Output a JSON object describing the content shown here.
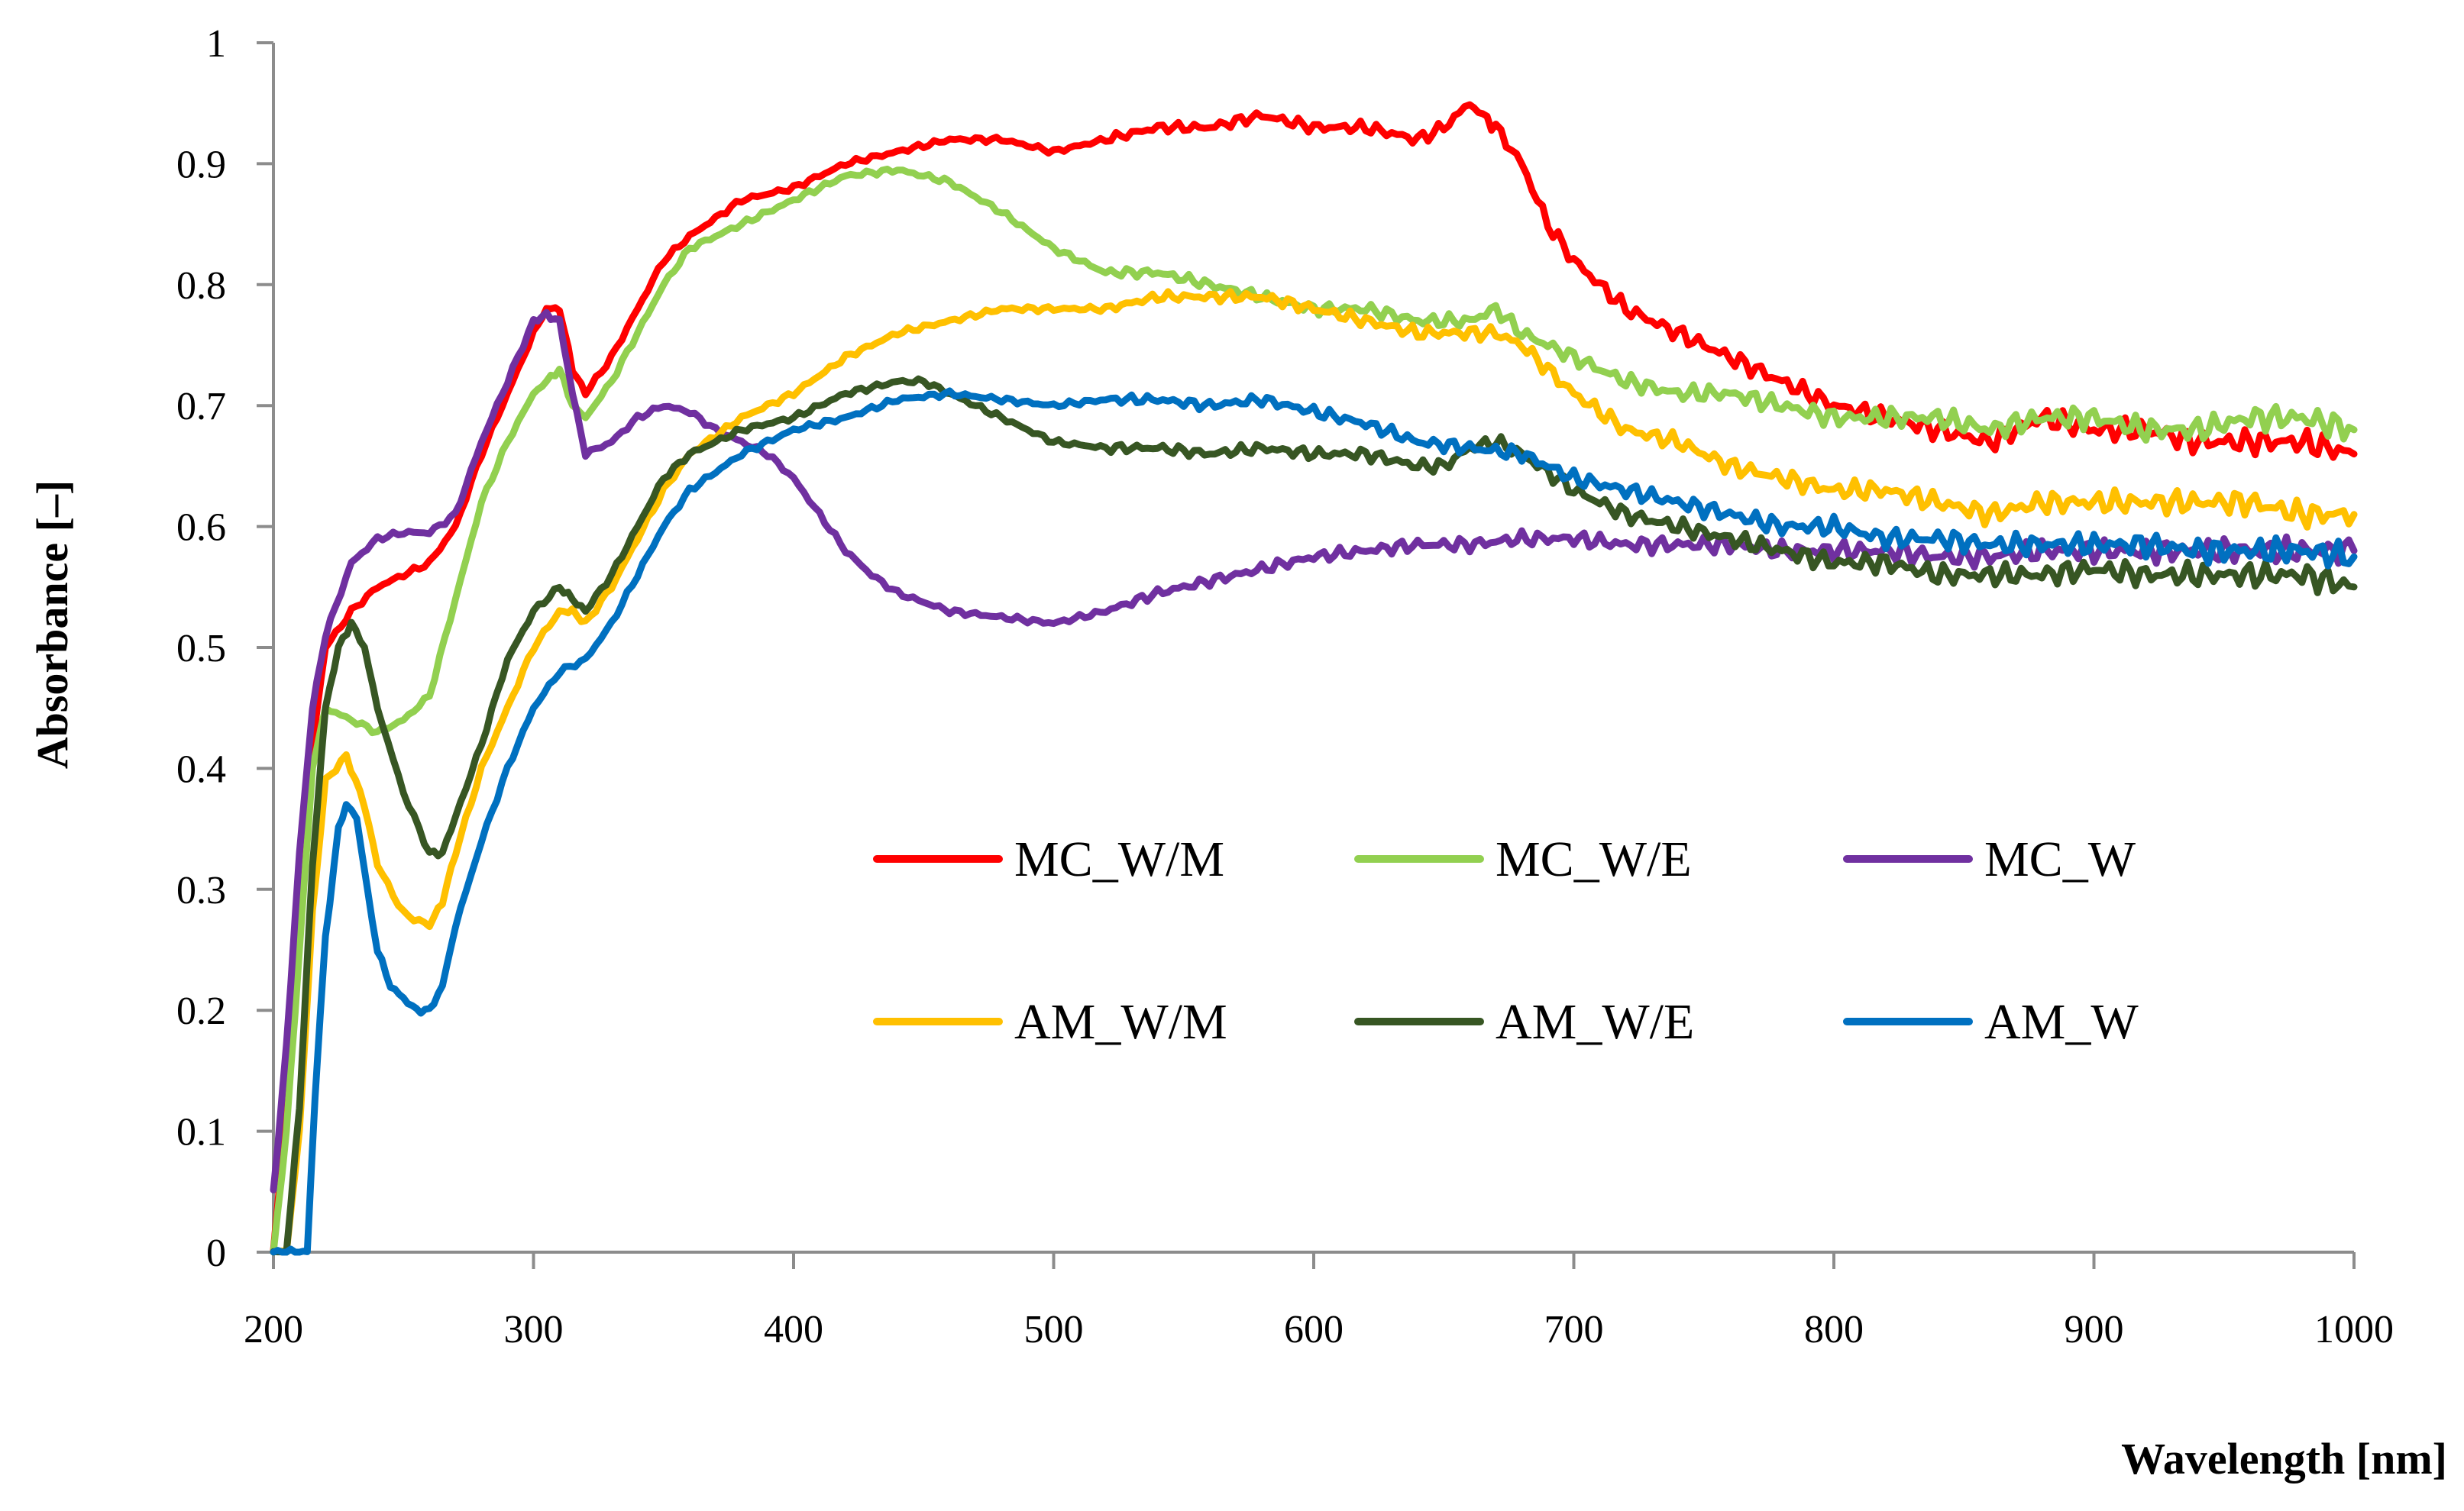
{
  "chart_data": {
    "type": "line",
    "title": "",
    "xlabel": "Wavelength [nm]",
    "ylabel": "Absorbance [–]",
    "xlim": [
      200,
      1000
    ],
    "ylim": [
      0,
      1
    ],
    "x_ticks": [
      200,
      300,
      400,
      500,
      600,
      700,
      800,
      900,
      1000
    ],
    "y_ticks": [
      0,
      0.1,
      0.2,
      0.3,
      0.4,
      0.5,
      0.6,
      0.7,
      0.8,
      0.9,
      1
    ],
    "y_tick_labels": [
      "0",
      "0.1",
      "0.2",
      "0.3",
      "0.4",
      "0.5",
      "0.6",
      "0.7",
      "0.8",
      "0.9",
      "1"
    ],
    "grid": false,
    "legend_position": "center-right, inside plot",
    "series": [
      {
        "name": "MC_W/M",
        "color": "#ff0000",
        "x": [
          200,
          205,
          210,
          215,
          220,
          230,
          240,
          250,
          260,
          270,
          280,
          290,
          300,
          305,
          310,
          315,
          320,
          330,
          340,
          350,
          360,
          380,
          400,
          420,
          440,
          460,
          480,
          500,
          520,
          540,
          560,
          580,
          600,
          620,
          640,
          650,
          660,
          665,
          670,
          680,
          690,
          700,
          720,
          740,
          760,
          780,
          800,
          820,
          840,
          860,
          880,
          900,
          920,
          940,
          960,
          980,
          1000
        ],
        "y": [
          0.0,
          0.12,
          0.28,
          0.42,
          0.5,
          0.53,
          0.55,
          0.56,
          0.57,
          0.6,
          0.66,
          0.71,
          0.76,
          0.78,
          0.78,
          0.73,
          0.71,
          0.74,
          0.78,
          0.82,
          0.84,
          0.87,
          0.88,
          0.9,
          0.91,
          0.92,
          0.92,
          0.91,
          0.92,
          0.93,
          0.93,
          0.94,
          0.93,
          0.93,
          0.92,
          0.93,
          0.95,
          0.94,
          0.93,
          0.9,
          0.85,
          0.82,
          0.78,
          0.76,
          0.74,
          0.72,
          0.7,
          0.69,
          0.68,
          0.67,
          0.69,
          0.68,
          0.68,
          0.67,
          0.67,
          0.67,
          0.66
        ]
      },
      {
        "name": "MC_W/E",
        "color": "#92d050",
        "x": [
          200,
          205,
          210,
          215,
          220,
          230,
          240,
          250,
          260,
          270,
          280,
          290,
          300,
          305,
          310,
          315,
          320,
          330,
          340,
          350,
          360,
          380,
          400,
          420,
          440,
          460,
          480,
          500,
          520,
          540,
          560,
          580,
          600,
          620,
          640,
          660,
          670,
          680,
          700,
          720,
          740,
          760,
          780,
          800,
          820,
          840,
          860,
          880,
          900,
          920,
          940,
          960,
          980,
          1000
        ],
        "y": [
          0.0,
          0.1,
          0.25,
          0.4,
          0.45,
          0.44,
          0.43,
          0.44,
          0.46,
          0.54,
          0.62,
          0.67,
          0.71,
          0.72,
          0.73,
          0.7,
          0.69,
          0.72,
          0.76,
          0.8,
          0.83,
          0.85,
          0.87,
          0.89,
          0.895,
          0.885,
          0.86,
          0.83,
          0.81,
          0.81,
          0.8,
          0.79,
          0.78,
          0.78,
          0.77,
          0.77,
          0.78,
          0.76,
          0.74,
          0.72,
          0.71,
          0.71,
          0.7,
          0.69,
          0.69,
          0.69,
          0.68,
          0.69,
          0.69,
          0.68,
          0.68,
          0.69,
          0.69,
          0.68
        ]
      },
      {
        "name": "MC_W",
        "color": "#7030a0",
        "x": [
          200,
          205,
          210,
          215,
          220,
          230,
          240,
          250,
          260,
          270,
          280,
          290,
          300,
          305,
          310,
          315,
          320,
          330,
          340,
          350,
          360,
          370,
          380,
          390,
          400,
          410,
          420,
          430,
          440,
          460,
          480,
          500,
          520,
          540,
          560,
          580,
          600,
          620,
          640,
          660,
          680,
          700,
          720,
          740,
          760,
          780,
          800,
          820,
          840,
          860,
          880,
          900,
          920,
          940,
          960,
          980,
          1000
        ],
        "y": [
          0.05,
          0.17,
          0.33,
          0.45,
          0.51,
          0.57,
          0.59,
          0.595,
          0.595,
          0.61,
          0.67,
          0.72,
          0.77,
          0.775,
          0.77,
          0.71,
          0.66,
          0.67,
          0.69,
          0.7,
          0.695,
          0.68,
          0.67,
          0.66,
          0.64,
          0.61,
          0.58,
          0.56,
          0.545,
          0.53,
          0.525,
          0.52,
          0.53,
          0.545,
          0.555,
          0.565,
          0.575,
          0.58,
          0.585,
          0.585,
          0.59,
          0.59,
          0.585,
          0.585,
          0.585,
          0.58,
          0.58,
          0.58,
          0.575,
          0.575,
          0.58,
          0.58,
          0.58,
          0.58,
          0.58,
          0.58,
          0.58
        ]
      },
      {
        "name": "AM_W/M",
        "color": "#ffc000",
        "x": [
          200,
          205,
          210,
          215,
          220,
          228,
          235,
          240,
          250,
          260,
          265,
          270,
          280,
          290,
          300,
          310,
          315,
          320,
          330,
          340,
          350,
          360,
          380,
          400,
          420,
          440,
          460,
          480,
          500,
          520,
          540,
          560,
          580,
          600,
          620,
          640,
          660,
          670,
          680,
          700,
          720,
          740,
          760,
          780,
          800,
          820,
          840,
          860,
          880,
          900,
          920,
          940,
          960,
          980,
          1000
        ],
        "y": [
          0.0,
          0.0,
          0.1,
          0.28,
          0.39,
          0.41,
          0.37,
          0.32,
          0.28,
          0.27,
          0.29,
          0.33,
          0.4,
          0.45,
          0.5,
          0.53,
          0.53,
          0.52,
          0.55,
          0.59,
          0.63,
          0.66,
          0.69,
          0.71,
          0.74,
          0.76,
          0.77,
          0.78,
          0.78,
          0.78,
          0.79,
          0.79,
          0.79,
          0.78,
          0.77,
          0.76,
          0.76,
          0.76,
          0.75,
          0.71,
          0.68,
          0.67,
          0.65,
          0.64,
          0.63,
          0.63,
          0.62,
          0.61,
          0.62,
          0.62,
          0.62,
          0.62,
          0.62,
          0.61,
          0.61
        ]
      },
      {
        "name": "AM_W/E",
        "color": "#375623",
        "x": [
          200,
          205,
          210,
          215,
          220,
          225,
          230,
          235,
          240,
          250,
          260,
          265,
          270,
          280,
          290,
          300,
          310,
          315,
          320,
          330,
          340,
          350,
          360,
          380,
          400,
          420,
          440,
          450,
          460,
          480,
          500,
          520,
          540,
          560,
          580,
          600,
          620,
          640,
          650,
          660,
          670,
          680,
          700,
          720,
          740,
          760,
          780,
          800,
          820,
          840,
          860,
          880,
          900,
          920,
          940,
          960,
          980,
          1000
        ],
        "y": [
          0.0,
          0.0,
          0.12,
          0.32,
          0.45,
          0.5,
          0.52,
          0.5,
          0.45,
          0.38,
          0.33,
          0.33,
          0.36,
          0.42,
          0.49,
          0.53,
          0.55,
          0.54,
          0.53,
          0.56,
          0.6,
          0.64,
          0.66,
          0.68,
          0.69,
          0.71,
          0.72,
          0.72,
          0.71,
          0.69,
          0.67,
          0.665,
          0.665,
          0.66,
          0.665,
          0.66,
          0.66,
          0.65,
          0.65,
          0.665,
          0.67,
          0.66,
          0.63,
          0.61,
          0.6,
          0.59,
          0.58,
          0.57,
          0.57,
          0.56,
          0.56,
          0.56,
          0.565,
          0.56,
          0.56,
          0.56,
          0.56,
          0.55
        ]
      },
      {
        "name": "AM_W",
        "color": "#0070c0",
        "x": [
          200,
          205,
          210,
          213,
          216,
          220,
          225,
          228,
          232,
          236,
          240,
          245,
          250,
          255,
          260,
          265,
          270,
          280,
          290,
          300,
          310,
          320,
          330,
          340,
          350,
          360,
          380,
          400,
          420,
          440,
          460,
          480,
          500,
          520,
          540,
          560,
          580,
          600,
          620,
          640,
          660,
          680,
          700,
          720,
          740,
          760,
          780,
          800,
          820,
          840,
          860,
          880,
          900,
          920,
          940,
          960,
          980,
          1000
        ],
        "y": [
          0.0,
          0.0,
          0.0,
          0.0,
          0.13,
          0.26,
          0.35,
          0.37,
          0.36,
          0.3,
          0.25,
          0.22,
          0.21,
          0.2,
          0.2,
          0.22,
          0.27,
          0.34,
          0.4,
          0.45,
          0.48,
          0.49,
          0.52,
          0.56,
          0.6,
          0.63,
          0.66,
          0.68,
          0.69,
          0.705,
          0.71,
          0.705,
          0.7,
          0.705,
          0.705,
          0.7,
          0.705,
          0.695,
          0.685,
          0.67,
          0.665,
          0.66,
          0.64,
          0.63,
          0.62,
          0.61,
          0.6,
          0.6,
          0.59,
          0.59,
          0.585,
          0.585,
          0.585,
          0.585,
          0.58,
          0.58,
          0.58,
          0.575
        ]
      }
    ]
  }
}
